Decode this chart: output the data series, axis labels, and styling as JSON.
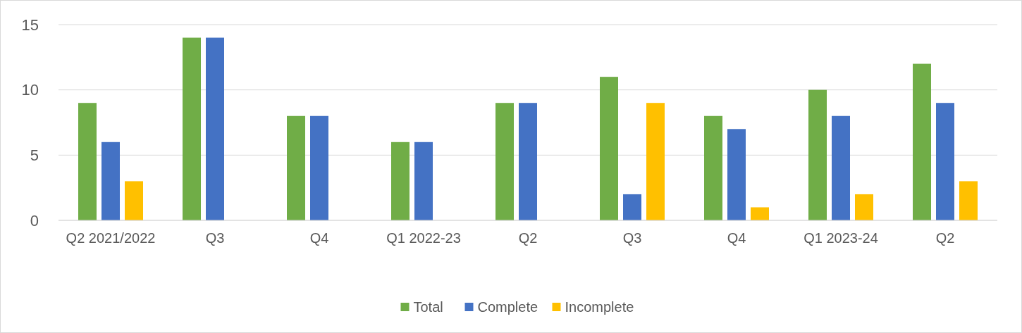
{
  "chart_data": {
    "type": "bar",
    "categories": [
      "Q2 2021/2022",
      "Q3",
      "Q4",
      "Q1 2022-23",
      "Q2",
      "Q3",
      "Q4",
      "Q1 2023-24",
      "Q2"
    ],
    "series": [
      {
        "name": "Total",
        "color": "#70ad47",
        "values": [
          9,
          14,
          8,
          6,
          9,
          11,
          8,
          10,
          12
        ]
      },
      {
        "name": "Complete",
        "color": "#4472c4",
        "values": [
          6,
          14,
          8,
          6,
          9,
          2,
          7,
          8,
          9
        ]
      },
      {
        "name": "Incomplete",
        "color": "#ffc000",
        "values": [
          3,
          0,
          0,
          0,
          0,
          9,
          1,
          2,
          3
        ]
      }
    ],
    "ylim": [
      0,
      15
    ],
    "yticks": [
      0,
      5,
      10,
      15
    ],
    "grid": "y",
    "legend": "bottom"
  }
}
